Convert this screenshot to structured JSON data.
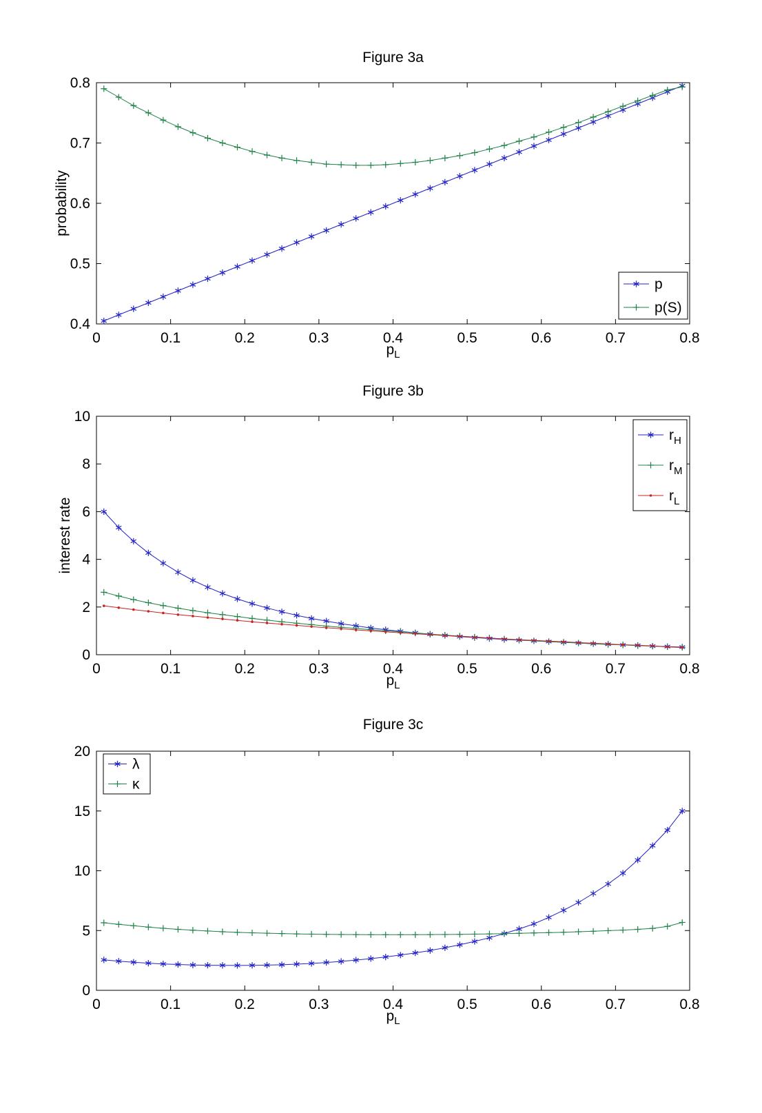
{
  "page": {
    "background": "#ffffff"
  },
  "chart_data": [
    {
      "id": "figure-3a",
      "type": "line",
      "title": "Figure 3a",
      "xlabel_base": "p",
      "xlabel_sub": "L",
      "ylabel": "probability",
      "xlim": [
        0,
        0.8
      ],
      "ylim": [
        0.4,
        0.8
      ],
      "grid": false,
      "xticks": [
        0,
        0.1,
        0.2,
        0.3,
        0.4,
        0.5,
        0.6,
        0.7,
        0.8
      ],
      "xtick_labels": [
        "0",
        "0.1",
        "0.2",
        "0.3",
        "0.4",
        "0.5",
        "0.6",
        "0.7",
        "0.8"
      ],
      "yticks": [
        0.4,
        0.5,
        0.6,
        0.7,
        0.8
      ],
      "ytick_labels": [
        "0.4",
        "0.5",
        "0.6",
        "0.7",
        "0.8"
      ],
      "legend_position": "bottom-right",
      "x": [
        0.01,
        0.03,
        0.05,
        0.07,
        0.09,
        0.11,
        0.13,
        0.15,
        0.17,
        0.19,
        0.21,
        0.23,
        0.25,
        0.27,
        0.29,
        0.31,
        0.33,
        0.35,
        0.37,
        0.39,
        0.41,
        0.43,
        0.45,
        0.47,
        0.49,
        0.51,
        0.53,
        0.55,
        0.57,
        0.59,
        0.61,
        0.63,
        0.65,
        0.67,
        0.69,
        0.71,
        0.73,
        0.75,
        0.77,
        0.79
      ],
      "series": [
        {
          "name": "p",
          "legend_base": "p",
          "legend_sub": "",
          "color": "#2323c8",
          "marker": "asterisk",
          "values": [
            0.405,
            0.415,
            0.425,
            0.435,
            0.445,
            0.455,
            0.465,
            0.475,
            0.485,
            0.495,
            0.505,
            0.515,
            0.525,
            0.535,
            0.545,
            0.555,
            0.565,
            0.575,
            0.585,
            0.595,
            0.605,
            0.615,
            0.625,
            0.635,
            0.645,
            0.655,
            0.665,
            0.675,
            0.685,
            0.695,
            0.705,
            0.715,
            0.725,
            0.735,
            0.745,
            0.755,
            0.765,
            0.775,
            0.785,
            0.795
          ]
        },
        {
          "name": "p(S)",
          "legend_base": "p(S)",
          "legend_sub": "",
          "color": "#1e8246",
          "marker": "plus",
          "values": [
            0.79,
            0.776,
            0.762,
            0.75,
            0.738,
            0.727,
            0.717,
            0.708,
            0.7,
            0.693,
            0.686,
            0.68,
            0.675,
            0.671,
            0.668,
            0.665,
            0.664,
            0.663,
            0.663,
            0.664,
            0.666,
            0.668,
            0.671,
            0.675,
            0.679,
            0.684,
            0.69,
            0.696,
            0.703,
            0.71,
            0.718,
            0.726,
            0.734,
            0.743,
            0.752,
            0.761,
            0.77,
            0.779,
            0.788,
            0.793
          ]
        }
      ]
    },
    {
      "id": "figure-3b",
      "type": "line",
      "title": "Figure 3b",
      "xlabel_base": "p",
      "xlabel_sub": "L",
      "ylabel": "interest rate",
      "xlim": [
        0,
        0.8
      ],
      "ylim": [
        0,
        10
      ],
      "grid": false,
      "xticks": [
        0,
        0.1,
        0.2,
        0.3,
        0.4,
        0.5,
        0.6,
        0.7,
        0.8
      ],
      "xtick_labels": [
        "0",
        "0.1",
        "0.2",
        "0.3",
        "0.4",
        "0.5",
        "0.6",
        "0.7",
        "0.8"
      ],
      "yticks": [
        0,
        2,
        4,
        6,
        8,
        10
      ],
      "ytick_labels": [
        "0",
        "2",
        "4",
        "6",
        "8",
        "10"
      ],
      "legend_position": "top-right",
      "x": [
        0.01,
        0.03,
        0.05,
        0.07,
        0.09,
        0.11,
        0.13,
        0.15,
        0.17,
        0.19,
        0.21,
        0.23,
        0.25,
        0.27,
        0.29,
        0.31,
        0.33,
        0.35,
        0.37,
        0.39,
        0.41,
        0.43,
        0.45,
        0.47,
        0.49,
        0.51,
        0.53,
        0.55,
        0.57,
        0.59,
        0.61,
        0.63,
        0.65,
        0.67,
        0.69,
        0.71,
        0.73,
        0.75,
        0.77,
        0.79
      ],
      "series": [
        {
          "name": "r_H",
          "legend_base": "r",
          "legend_sub": "H",
          "color": "#2323c8",
          "marker": "asterisk",
          "values": [
            6.0,
            5.33,
            4.76,
            4.27,
            3.84,
            3.46,
            3.12,
            2.83,
            2.57,
            2.34,
            2.14,
            1.96,
            1.8,
            1.65,
            1.52,
            1.41,
            1.3,
            1.21,
            1.12,
            1.05,
            0.98,
            0.92,
            0.86,
            0.81,
            0.76,
            0.72,
            0.68,
            0.64,
            0.61,
            0.58,
            0.55,
            0.52,
            0.49,
            0.46,
            0.44,
            0.41,
            0.39,
            0.36,
            0.34,
            0.32
          ]
        },
        {
          "name": "r_M",
          "legend_base": "r",
          "legend_sub": "M",
          "color": "#1e8246",
          "marker": "plus",
          "values": [
            2.62,
            2.46,
            2.31,
            2.18,
            2.06,
            1.95,
            1.85,
            1.76,
            1.68,
            1.6,
            1.52,
            1.45,
            1.38,
            1.32,
            1.26,
            1.2,
            1.15,
            1.1,
            1.05,
            1.0,
            0.96,
            0.91,
            0.86,
            0.82,
            0.78,
            0.74,
            0.7,
            0.66,
            0.62,
            0.58,
            0.55,
            0.52,
            0.49,
            0.46,
            0.43,
            0.41,
            0.38,
            0.36,
            0.33,
            0.31
          ]
        },
        {
          "name": "r_L",
          "legend_base": "r",
          "legend_sub": "L",
          "color": "#cc2222",
          "marker": "dot",
          "values": [
            2.05,
            1.97,
            1.89,
            1.82,
            1.75,
            1.68,
            1.62,
            1.56,
            1.5,
            1.44,
            1.38,
            1.33,
            1.28,
            1.23,
            1.18,
            1.13,
            1.09,
            1.04,
            1.0,
            0.96,
            0.92,
            0.88,
            0.84,
            0.8,
            0.77,
            0.73,
            0.7,
            0.66,
            0.63,
            0.6,
            0.57,
            0.54,
            0.51,
            0.48,
            0.45,
            0.42,
            0.4,
            0.37,
            0.33,
            0.3
          ]
        }
      ]
    },
    {
      "id": "figure-3c",
      "type": "line",
      "title": "Figure 3c",
      "xlabel_base": "p",
      "xlabel_sub": "L",
      "ylabel": "",
      "xlim": [
        0,
        0.8
      ],
      "ylim": [
        0,
        20
      ],
      "grid": false,
      "xticks": [
        0,
        0.1,
        0.2,
        0.3,
        0.4,
        0.5,
        0.6,
        0.7,
        0.8
      ],
      "xtick_labels": [
        "0",
        "0.1",
        "0.2",
        "0.3",
        "0.4",
        "0.5",
        "0.6",
        "0.7",
        "0.8"
      ],
      "yticks": [
        0,
        5,
        10,
        15,
        20
      ],
      "ytick_labels": [
        "0",
        "5",
        "10",
        "15",
        "20"
      ],
      "legend_position": "top-left",
      "x": [
        0.01,
        0.03,
        0.05,
        0.07,
        0.09,
        0.11,
        0.13,
        0.15,
        0.17,
        0.19,
        0.21,
        0.23,
        0.25,
        0.27,
        0.29,
        0.31,
        0.33,
        0.35,
        0.37,
        0.39,
        0.41,
        0.43,
        0.45,
        0.47,
        0.49,
        0.51,
        0.53,
        0.55,
        0.57,
        0.59,
        0.61,
        0.63,
        0.65,
        0.67,
        0.69,
        0.71,
        0.73,
        0.75,
        0.77,
        0.79
      ],
      "series": [
        {
          "name": "lambda",
          "legend_base": "λ",
          "legend_sub": "",
          "color": "#2323c8",
          "marker": "asterisk",
          "values": [
            2.55,
            2.44,
            2.35,
            2.27,
            2.21,
            2.16,
            2.12,
            2.1,
            2.09,
            2.08,
            2.09,
            2.11,
            2.14,
            2.19,
            2.25,
            2.33,
            2.42,
            2.53,
            2.65,
            2.79,
            2.95,
            3.13,
            3.33,
            3.56,
            3.81,
            4.09,
            4.4,
            4.75,
            5.13,
            5.56,
            6.1,
            6.7,
            7.35,
            8.1,
            8.9,
            9.8,
            10.9,
            12.1,
            13.4,
            15.0
          ]
        },
        {
          "name": "kappa",
          "legend_base": "κ",
          "legend_sub": "",
          "color": "#1e8246",
          "marker": "plus",
          "values": [
            5.65,
            5.52,
            5.4,
            5.29,
            5.19,
            5.1,
            5.03,
            4.96,
            4.9,
            4.85,
            4.81,
            4.78,
            4.75,
            4.72,
            4.7,
            4.68,
            4.67,
            4.66,
            4.65,
            4.65,
            4.65,
            4.65,
            4.66,
            4.67,
            4.68,
            4.7,
            4.72,
            4.74,
            4.77,
            4.8,
            4.83,
            4.86,
            4.9,
            4.94,
            4.99,
            5.04,
            5.1,
            5.18,
            5.35,
            5.68
          ]
        }
      ]
    }
  ]
}
